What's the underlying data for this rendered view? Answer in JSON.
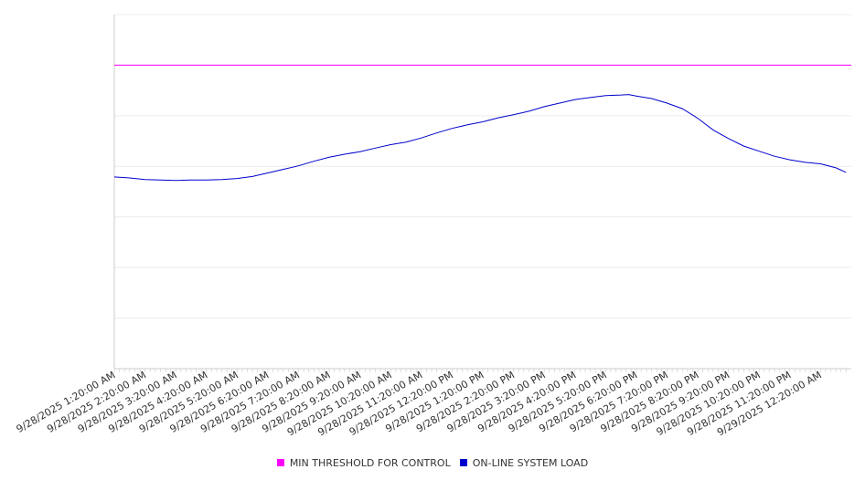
{
  "chart_data": {
    "type": "line",
    "title": "",
    "xlabel": "",
    "ylabel": "",
    "grid": true,
    "legend_position": "bottom",
    "y_ticks_labeled": false,
    "x_tick_labels": [
      "9/28/2025 1:20:00 AM",
      "9/28/2025 2:20:00 AM",
      "9/28/2025 3:20:00 AM",
      "9/28/2025 4:20:00 AM",
      "9/28/2025 5:20:00 AM",
      "9/28/2025 6:20:00 AM",
      "9/28/2025 7:20:00 AM",
      "9/28/2025 8:20:00 AM",
      "9/28/2025 9:20:00 AM",
      "9/28/2025 10:20:00 AM",
      "9/28/2025 11:20:00 AM",
      "9/28/2025 12:20:00 PM",
      "9/28/2025 1:20:00 PM",
      "9/28/2025 2:20:00 PM",
      "9/28/2025 3:20:00 PM",
      "9/28/2025 4:20:00 PM",
      "9/28/2025 5:20:00 PM",
      "9/28/2025 6:20:00 PM",
      "9/28/2025 7:20:00 PM",
      "9/28/2025 8:20:00 PM",
      "9/28/2025 9:20:00 PM",
      "9/28/2025 10:20:00 PM",
      "9/28/2025 11:20:00 PM",
      "9/29/2025 12:20:00 AM"
    ],
    "x_hours": [
      0,
      0.5,
      1,
      1.5,
      2,
      2.5,
      3,
      3.5,
      4,
      4.5,
      5,
      5.5,
      6,
      6.5,
      7,
      7.5,
      8,
      8.5,
      9,
      9.5,
      10,
      10.5,
      11,
      11.5,
      12,
      12.5,
      13,
      13.5,
      14,
      14.5,
      15,
      15.5,
      16,
      16.5,
      16.75,
      17,
      17.5,
      18,
      18.5,
      19,
      19.5,
      20,
      20.5,
      21,
      21.5,
      22,
      22.5,
      23,
      23.5,
      23.83
    ],
    "ylim": [
      0,
      7
    ],
    "series": [
      {
        "name": "MIN THRESHOLD FOR CONTROL",
        "color": "#ff00ff",
        "values": [
          6.0
        ]
      },
      {
        "name": "ON-LINE SYSTEM LOAD",
        "color": "#0000cc",
        "values": [
          3.79,
          3.77,
          3.74,
          3.73,
          3.72,
          3.73,
          3.73,
          3.74,
          3.76,
          3.8,
          3.87,
          3.94,
          4.01,
          4.1,
          4.18,
          4.24,
          4.29,
          4.36,
          4.43,
          4.48,
          4.56,
          4.66,
          4.75,
          4.82,
          4.88,
          4.96,
          5.02,
          5.09,
          5.18,
          5.25,
          5.32,
          5.36,
          5.4,
          5.41,
          5.42,
          5.39,
          5.34,
          5.25,
          5.14,
          4.95,
          4.72,
          4.55,
          4.4,
          4.3,
          4.2,
          4.13,
          4.08,
          4.05,
          3.97,
          3.88
        ]
      }
    ]
  }
}
